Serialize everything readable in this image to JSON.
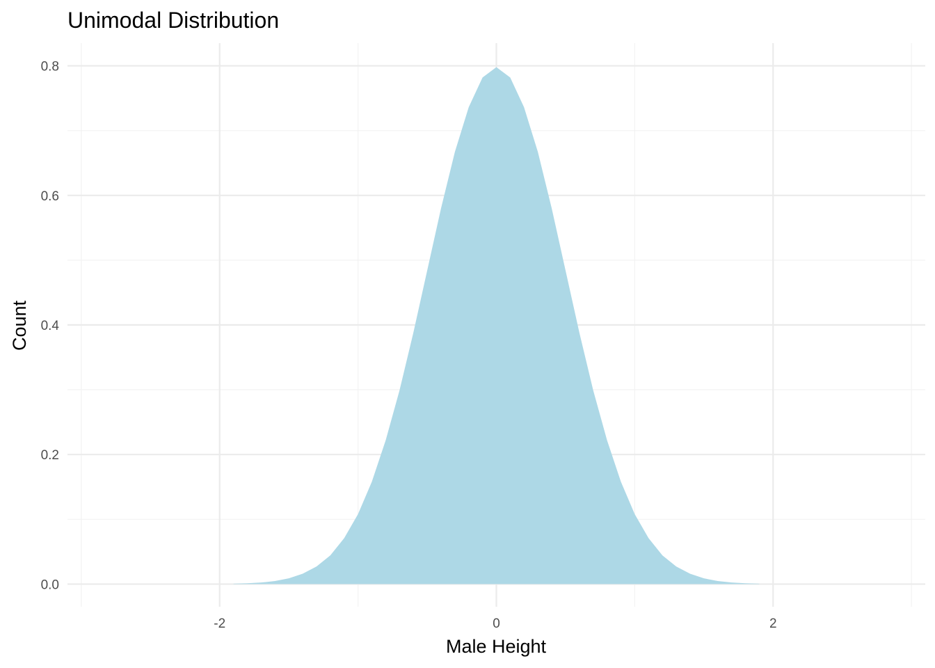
{
  "chart_data": {
    "type": "area",
    "title": "Unimodal Distribution",
    "xlabel": "Male Height",
    "ylabel": "Count",
    "xlim": [
      -3.1,
      3.1
    ],
    "ylim": [
      -0.035,
      0.835
    ],
    "x_ticks": [
      -2,
      0,
      2
    ],
    "x_tick_labels": [
      "-2",
      "0",
      "2"
    ],
    "y_ticks": [
      0.0,
      0.2,
      0.4,
      0.6,
      0.8
    ],
    "y_tick_labels": [
      "0.0",
      "0.2",
      "0.4",
      "0.6",
      "0.8"
    ],
    "grid": true,
    "fill_color": "#add8e6",
    "series": [
      {
        "x": [
          -1.9,
          -1.8,
          -1.7,
          -1.6,
          -1.5,
          -1.4,
          -1.3,
          -1.2,
          -1.1,
          -1.0,
          -0.9,
          -0.8,
          -0.7,
          -0.6,
          -0.5,
          -0.4,
          -0.3,
          -0.2,
          -0.1,
          0.0,
          0.1,
          0.2,
          0.3,
          0.4,
          0.5,
          0.6,
          0.7,
          0.8,
          0.9,
          1.0,
          1.1,
          1.2,
          1.3,
          1.4,
          1.5,
          1.6,
          1.7,
          1.8,
          1.9
        ],
        "values": [
          0.0006,
          0.0012,
          0.0024,
          0.0047,
          0.0089,
          0.016,
          0.0271,
          0.0443,
          0.0709,
          0.108,
          0.158,
          0.222,
          0.299,
          0.388,
          0.484,
          0.58,
          0.667,
          0.736,
          0.782,
          0.798,
          0.782,
          0.736,
          0.667,
          0.58,
          0.484,
          0.388,
          0.299,
          0.222,
          0.158,
          0.108,
          0.0709,
          0.0443,
          0.0271,
          0.016,
          0.0089,
          0.0047,
          0.0024,
          0.0012,
          0.0006
        ]
      }
    ]
  }
}
